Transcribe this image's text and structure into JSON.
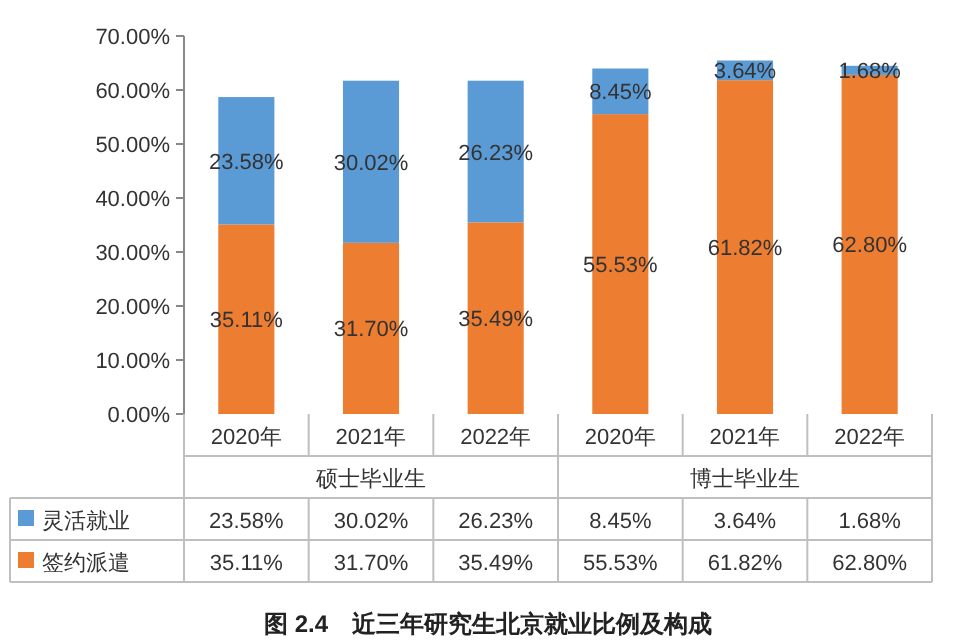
{
  "chart_data": {
    "type": "bar",
    "stacked": true,
    "grid": false,
    "legend": "bottom",
    "categories": [
      "2020年",
      "2021年",
      "2022年",
      "2020年",
      "2021年",
      "2022年"
    ],
    "series": [
      {
        "name": "签约派遣",
        "color": "#ed7d31",
        "values": [
          35.11,
          31.7,
          35.49,
          55.53,
          61.82,
          62.8
        ],
        "value_labels": [
          "35.11%",
          "31.70%",
          "35.49%",
          "55.53%",
          "61.82%",
          "62.80%"
        ]
      },
      {
        "name": "灵活就业",
        "color": "#5b9bd5",
        "values": [
          23.58,
          30.02,
          26.23,
          8.45,
          3.64,
          1.68
        ],
        "value_labels": [
          "23.58%",
          "30.02%",
          "26.23%",
          "8.45%",
          "3.64%",
          "1.68%"
        ]
      }
    ],
    "ylim": [
      0,
      70
    ],
    "yticks": [
      {
        "value": 0,
        "label": "0.00%"
      },
      {
        "value": 10,
        "label": "10.00%"
      },
      {
        "value": 20,
        "label": "20.00%"
      },
      {
        "value": 30,
        "label": "30.00%"
      },
      {
        "value": 40,
        "label": "40.00%"
      },
      {
        "value": 50,
        "label": "50.00%"
      },
      {
        "value": 60,
        "label": "60.00%"
      },
      {
        "value": 70,
        "label": "70.00%"
      }
    ],
    "annotations": [
      "硕士毕业生",
      "博士毕业生",
      "图 2.4　近三年研究生北京就业比例及构成"
    ]
  }
}
